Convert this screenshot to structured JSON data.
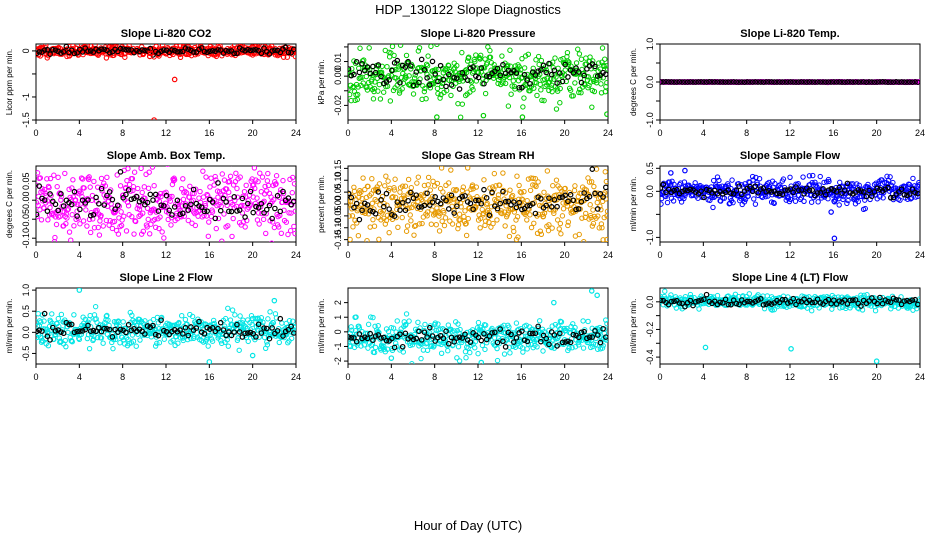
{
  "title": "HDP_130122  Slope Diagnostics",
  "xlabel": "Hour of Day (UTC)",
  "chart_data": [
    {
      "type": "scatter",
      "title": "Slope Li-820 CO2",
      "ylabel": "Licor ppm per min.",
      "xlim": [
        0,
        24
      ],
      "ylim": [
        -1.5,
        0.15
      ],
      "xticks": [
        0,
        4,
        8,
        12,
        16,
        20,
        24
      ],
      "yticks": [
        0,
        -0.5,
        -1,
        -1.5
      ],
      "ytick_labels": [
        "0",
        "",
        "-1",
        "-1.5"
      ],
      "color": "#ff0000",
      "center": 0.0,
      "spread": 0.06,
      "seed": 11,
      "outliers": [
        {
          "x": 10.5,
          "y": -0.12
        },
        {
          "x": 10.6,
          "y": -0.05
        },
        {
          "x": 12.8,
          "y": -0.62
        },
        {
          "x": 10.9,
          "y": -1.5
        }
      ]
    },
    {
      "type": "scatter",
      "title": "Slope Li-820 Pressure",
      "ylabel": "kPa per min.",
      "xlim": [
        0,
        24
      ],
      "ylim": [
        -0.03,
        0.022
      ],
      "xticks": [
        0,
        4,
        8,
        12,
        16,
        20,
        24
      ],
      "yticks": [
        0.02,
        0.01,
        0,
        -0.01,
        -0.02
      ],
      "ytick_labels": [
        "",
        "0.01",
        "0.00",
        "",
        "-0.02"
      ],
      "color": "#00cc00",
      "center": 0.001,
      "spread": 0.008,
      "seed": 23,
      "outliers": [
        {
          "x": 8.2,
          "y": -0.028
        },
        {
          "x": 12.5,
          "y": -0.027
        },
        {
          "x": 16.1,
          "y": -0.028
        },
        {
          "x": 23.9,
          "y": -0.026
        }
      ]
    },
    {
      "type": "scatter",
      "title": "Slope Li-820 Temp.",
      "ylabel": "degrees C per min.",
      "xlim": [
        0,
        24
      ],
      "ylim": [
        -1.0,
        1.0
      ],
      "xticks": [
        0,
        4,
        8,
        12,
        16,
        20,
        24
      ],
      "yticks": [
        1,
        0.5,
        0,
        -0.5,
        -1
      ],
      "ytick_labels": [
        "1.0",
        "",
        "0.0",
        "",
        "-1.0"
      ],
      "color": "#ff00ff",
      "center": 0.0,
      "spread": 0.004,
      "seed": 31,
      "outliers": []
    },
    {
      "type": "scatter",
      "title": "Slope Amb. Box Temp.",
      "ylabel": "degrees C per min.",
      "xlim": [
        0,
        24
      ],
      "ylim": [
        -0.11,
        0.09
      ],
      "xticks": [
        0,
        4,
        8,
        12,
        16,
        20,
        24
      ],
      "yticks": [
        0.05,
        0,
        -0.05,
        -0.1
      ],
      "ytick_labels": [
        "0.05",
        "0.00",
        "-0.05",
        "-0.10"
      ],
      "color": "#ff00ff",
      "center": -0.01,
      "spread": 0.045,
      "seed": 47,
      "outliers": []
    },
    {
      "type": "scatter",
      "title": "Slope Gas Stream RH",
      "ylabel": "percent per min.",
      "xlim": [
        0,
        24
      ],
      "ylim": [
        -0.16,
        0.16
      ],
      "xticks": [
        0,
        4,
        8,
        12,
        16,
        20,
        24
      ],
      "yticks": [
        0.15,
        0.1,
        0.05,
        0,
        -0.05,
        -0.1,
        -0.15
      ],
      "ytick_labels": [
        "0.15",
        "0.10",
        "0.05",
        "0.00",
        "-0.05",
        "-0.10",
        "-0.15"
      ],
      "color": "#e69900",
      "center": 0.0,
      "spread": 0.06,
      "seed": 59,
      "outliers": [
        {
          "x": 23.9,
          "y": -0.15
        }
      ]
    },
    {
      "type": "scatter",
      "title": "Slope Sample Flow",
      "ylabel": "ml/min per min.",
      "xlim": [
        0,
        24
      ],
      "ylim": [
        -1.1,
        0.55
      ],
      "xticks": [
        0,
        4,
        8,
        12,
        16,
        20,
        24
      ],
      "yticks": [
        0.5,
        0,
        -0.5,
        -1
      ],
      "ytick_labels": [
        "0.5",
        "0.0",
        "",
        "-1.0"
      ],
      "color": "#0000ff",
      "center": 0.0,
      "spread": 0.12,
      "seed": 67,
      "outliers": [
        {
          "x": 16.1,
          "y": -1.02
        },
        {
          "x": 2.3,
          "y": 0.45
        },
        {
          "x": 1.0,
          "y": 0.4
        },
        {
          "x": 15.8,
          "y": -0.45
        }
      ]
    },
    {
      "type": "scatter",
      "title": "Slope Line 2 Flow",
      "ylabel": "ml/min per min.",
      "xlim": [
        0,
        24
      ],
      "ylim": [
        -0.75,
        1.05
      ],
      "xticks": [
        0,
        4,
        8,
        12,
        16,
        20,
        24
      ],
      "yticks": [
        1,
        0.5,
        0,
        -0.5
      ],
      "ytick_labels": [
        "1.0",
        "0.5",
        "0.0",
        "-0.5"
      ],
      "color": "#00e5e5",
      "center": 0.05,
      "spread": 0.18,
      "seed": 79,
      "outliers": [
        {
          "x": 4.0,
          "y": 1.0
        },
        {
          "x": 16.0,
          "y": -0.7
        },
        {
          "x": 20.0,
          "y": -0.55
        },
        {
          "x": 22.0,
          "y": 0.75
        }
      ]
    },
    {
      "type": "scatter",
      "title": "Slope Line 3 Flow",
      "ylabel": "ml/min per min.",
      "xlim": [
        0,
        24
      ],
      "ylim": [
        -2.2,
        3.0
      ],
      "xticks": [
        0,
        4,
        8,
        12,
        16,
        20,
        24
      ],
      "yticks": [
        2,
        1,
        0,
        -1,
        -2
      ],
      "ytick_labels": [
        "2",
        "1",
        "0",
        "-1",
        "-2"
      ],
      "color": "#00e5e5",
      "center": -0.35,
      "spread": 0.55,
      "seed": 83,
      "outliers": [
        {
          "x": 19.0,
          "y": 2.0
        },
        {
          "x": 22.5,
          "y": 2.8
        },
        {
          "x": 23.0,
          "y": 2.5
        },
        {
          "x": 12.3,
          "y": -2.1
        },
        {
          "x": 4.0,
          "y": -1.8
        }
      ]
    },
    {
      "type": "scatter",
      "title": "Slope Line 4 (LT) Flow",
      "ylabel": "ml/min per min.",
      "xlim": [
        0,
        24
      ],
      "ylim": [
        -0.45,
        0.1
      ],
      "xticks": [
        0,
        4,
        8,
        12,
        16,
        20,
        24
      ],
      "yticks": [
        0,
        -0.1,
        -0.2,
        -0.3,
        -0.4
      ],
      "ytick_labels": [
        "0.0",
        "",
        "-0.2",
        "",
        "-0.4"
      ],
      "color": "#00e5e5",
      "center": 0.0,
      "spread": 0.025,
      "seed": 97,
      "outliers": [
        {
          "x": 4.2,
          "y": -0.33
        },
        {
          "x": 12.1,
          "y": -0.34
        },
        {
          "x": 20.0,
          "y": -0.43
        }
      ]
    }
  ]
}
